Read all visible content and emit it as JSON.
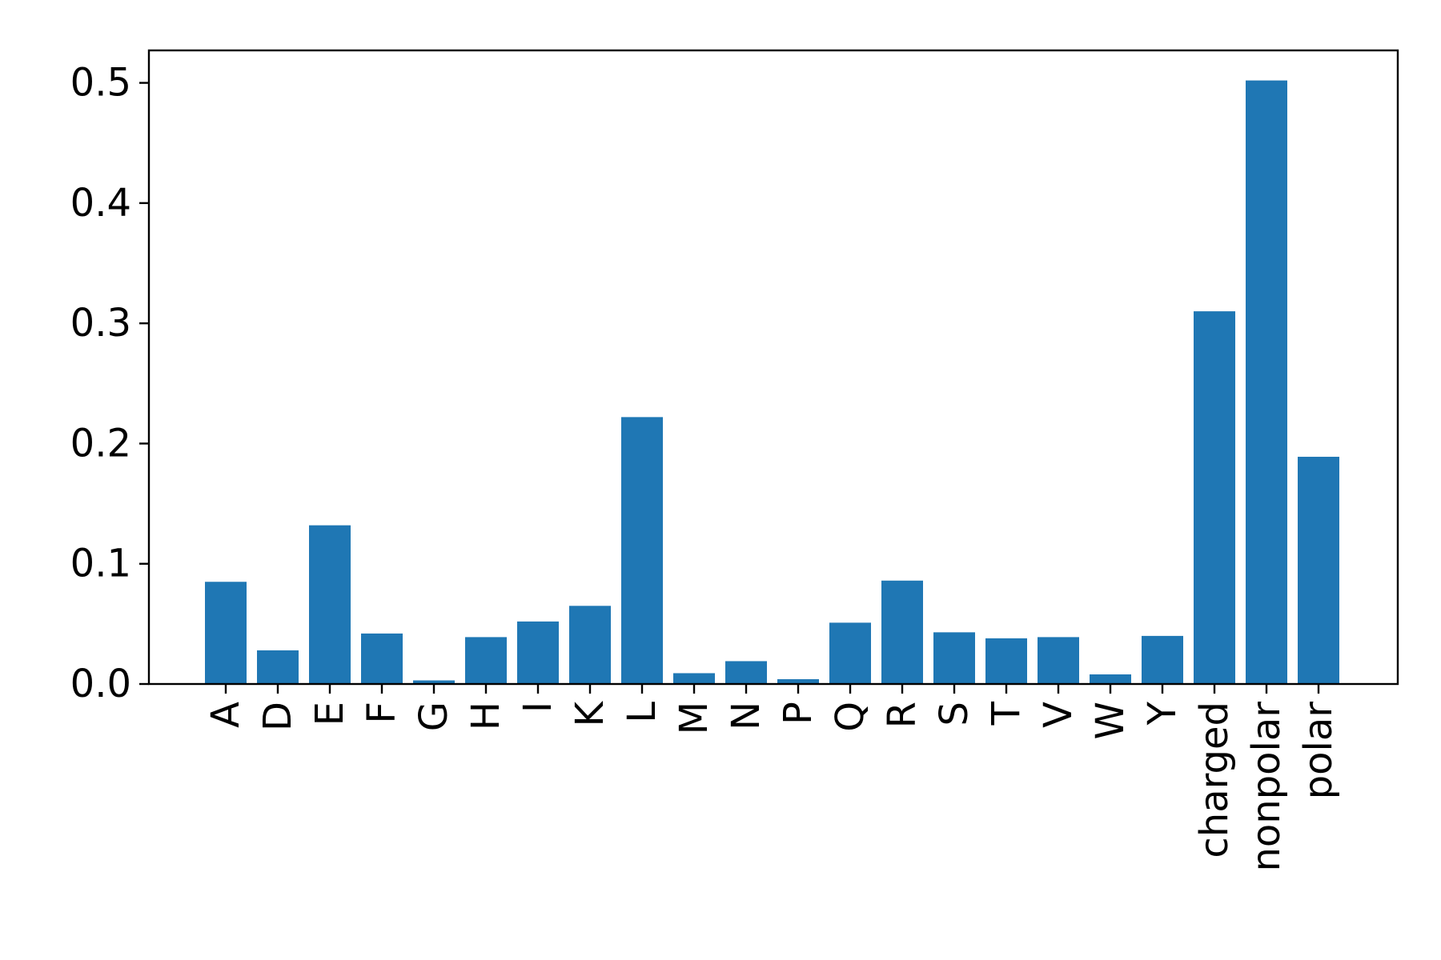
{
  "chart_data": {
    "type": "bar",
    "title": "",
    "xlabel": "",
    "ylabel": "",
    "categories": [
      "A",
      "D",
      "E",
      "F",
      "G",
      "H",
      "I",
      "K",
      "L",
      "M",
      "N",
      "P",
      "Q",
      "R",
      "S",
      "T",
      "V",
      "W",
      "Y",
      "charged",
      "nonpolar",
      "polar"
    ],
    "values": [
      0.085,
      0.028,
      0.132,
      0.042,
      0.003,
      0.039,
      0.052,
      0.065,
      0.222,
      0.009,
      0.019,
      0.004,
      0.051,
      0.086,
      0.043,
      0.038,
      0.039,
      0.008,
      0.04,
      0.31,
      0.502,
      0.189
    ],
    "ylim": [
      0.0,
      0.527
    ],
    "yticks": [
      0.0,
      0.1,
      0.2,
      0.3,
      0.4,
      0.5
    ],
    "ytick_labels": [
      "0.0",
      "0.1",
      "0.2",
      "0.3",
      "0.4",
      "0.5"
    ],
    "grid": false,
    "bar_color": "#1f77b4"
  }
}
